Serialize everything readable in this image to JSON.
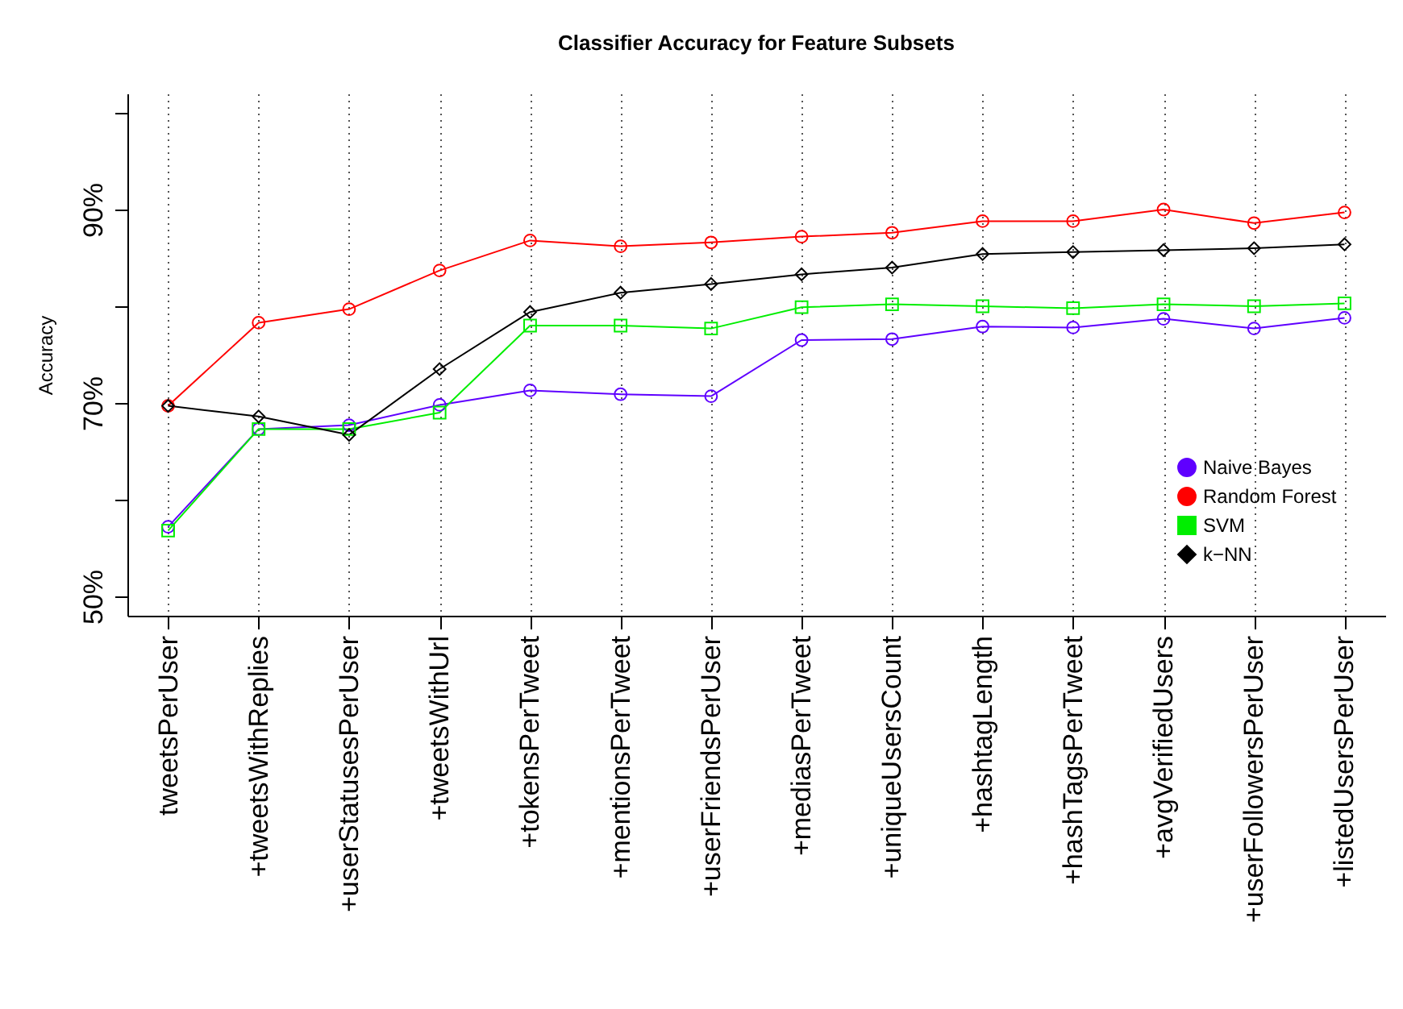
{
  "chart_data": {
    "type": "line",
    "title": "Classifier Accuracy for Feature Subsets",
    "ylabel": "Accuracy",
    "categories": [
      "tweetsPerUser",
      "+tweetsWithReplies",
      "+userStatusesPerUser",
      "+tweetsWithUrl",
      "+tokensPerTweet",
      "+mentionsPerTweet",
      "+userFriendsPerUser",
      "+mediasPerTweet",
      "+uniqueUsersCount",
      "+hashtagLength",
      "+hashTagsPerTweet",
      "+avgVerifiedUsers",
      "+userFollowersPerUser",
      "+listedUsersPerUser"
    ],
    "series": [
      {
        "name": "Naive Bayes",
        "color": "#5f00ff",
        "marker": "circle",
        "values": [
          57.2,
          67.3,
          67.7,
          69.8,
          71.3,
          70.9,
          70.7,
          76.5,
          76.6,
          77.9,
          77.8,
          78.7,
          77.7,
          78.8
        ]
      },
      {
        "name": "Random Forest",
        "color": "#ff0000",
        "marker": "circle",
        "values": [
          69.7,
          78.3,
          79.7,
          83.7,
          86.8,
          86.2,
          86.6,
          87.2,
          87.6,
          88.8,
          88.8,
          90.0,
          88.6,
          89.7
        ]
      },
      {
        "name": "SVM",
        "color": "#00ee00",
        "marker": "square",
        "values": [
          56.8,
          67.3,
          67.3,
          69.0,
          78.0,
          78.0,
          77.7,
          79.9,
          80.2,
          80.0,
          79.8,
          80.2,
          80.0,
          80.3
        ]
      },
      {
        "name": "k−NN",
        "color": "#000000",
        "marker": "diamond",
        "values": [
          69.7,
          68.6,
          66.7,
          73.5,
          79.4,
          81.4,
          82.3,
          83.3,
          84.0,
          85.4,
          85.6,
          85.8,
          86.0,
          86.4
        ]
      }
    ],
    "ylim": [
      48,
      102
    ],
    "yticks": [
      {
        "value": 50,
        "label": "50%"
      },
      {
        "value": 60,
        "label": null
      },
      {
        "value": 70,
        "label": "70%"
      },
      {
        "value": 80,
        "label": null
      },
      {
        "value": 90,
        "label": "90%"
      },
      {
        "value": 100,
        "label": null
      }
    ],
    "grid": "x",
    "legend": "bottom right"
  }
}
